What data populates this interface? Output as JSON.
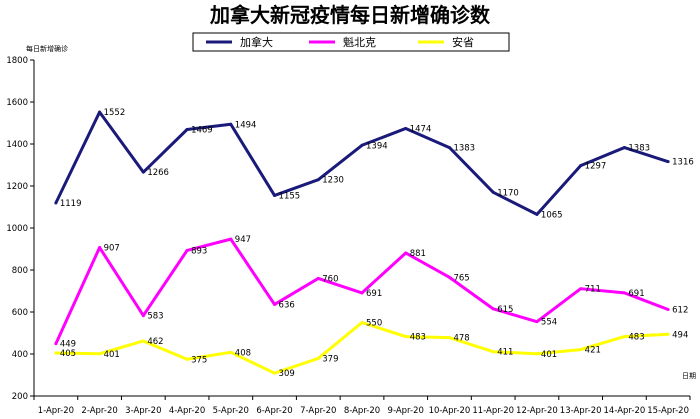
{
  "chart_data": {
    "type": "line",
    "title": "加拿大新冠疫情每日新增确诊数",
    "ylabel": "每日新增确诊",
    "xlabel": "日期",
    "ylim": [
      200,
      1800
    ],
    "yticks": [
      200,
      400,
      600,
      800,
      1000,
      1200,
      1400,
      1600,
      1800
    ],
    "grid": false,
    "legend_position": "top",
    "categories": [
      "1-Apr-20",
      "2-Apr-20",
      "3-Apr-20",
      "4-Apr-20",
      "5-Apr-20",
      "6-Apr-20",
      "7-Apr-20",
      "8-Apr-20",
      "9-Apr-20",
      "10-Apr-20",
      "11-Apr-20",
      "12-Apr-20",
      "13-Apr-20",
      "14-Apr-20",
      "15-Apr-20"
    ],
    "series": [
      {
        "name": "加拿大",
        "color": "#1a1a7a",
        "values": [
          1119,
          1552,
          1266,
          1469,
          1494,
          1155,
          1230,
          1394,
          1474,
          1383,
          1170,
          1065,
          1297,
          1383,
          1316
        ]
      },
      {
        "name": "魁北克",
        "color": "#ff00ff",
        "values": [
          449,
          907,
          583,
          893,
          947,
          636,
          760,
          691,
          881,
          765,
          615,
          554,
          711,
          691,
          612
        ]
      },
      {
        "name": "安省",
        "color": "#ffff00",
        "values": [
          405,
          401,
          462,
          375,
          408,
          309,
          379,
          550,
          483,
          478,
          411,
          401,
          421,
          483,
          494
        ]
      }
    ]
  }
}
